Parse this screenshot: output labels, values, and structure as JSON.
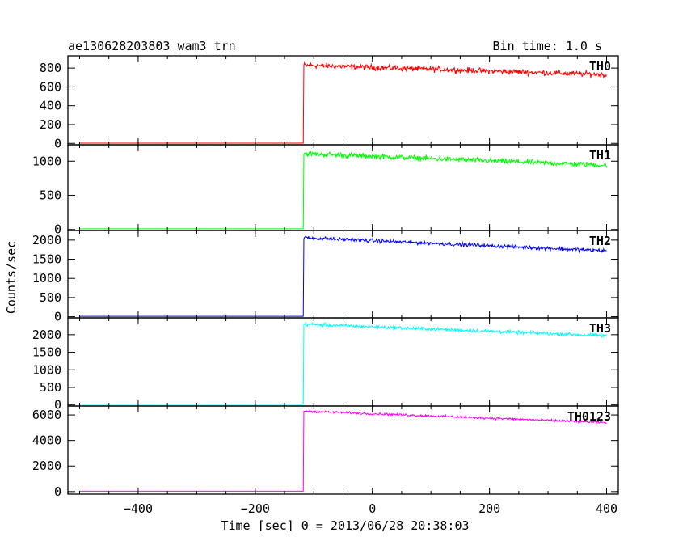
{
  "header": {
    "title": "ae130628203803_wam3_trn",
    "bin_time": "Bin time: 1.0 s"
  },
  "chart_data": {
    "type": "line",
    "xlabel": "Time [sec] 0 = 2013/06/28 20:38:03",
    "ylabel": "Counts/sec",
    "xlim": [
      -520,
      420
    ],
    "x_ticks": [
      -400,
      -200,
      0,
      200,
      400
    ],
    "x_tick_labels": [
      "−400",
      "−200",
      "0",
      "200",
      "400"
    ],
    "x_start": -500,
    "x_end": 400,
    "x_step": 1,
    "trigger_time": -117,
    "grid": false,
    "panels": [
      {
        "name": "TH0",
        "color": "#ff0000",
        "ylim": [
          -15,
          930
        ],
        "yticks": [
          0,
          200,
          400,
          600,
          800
        ],
        "ytick_labels": [
          "0",
          "200",
          "400",
          "600",
          "800"
        ],
        "pre_level": 2,
        "level_start": 830,
        "level_end": 730,
        "noise": 30
      },
      {
        "name": "TH1",
        "color": "#00ff00",
        "ylim": [
          -15,
          1240
        ],
        "yticks": [
          0,
          500,
          1000
        ],
        "ytick_labels": [
          "0",
          "500",
          "1000"
        ],
        "pre_level": 10,
        "level_start": 1110,
        "level_end": 940,
        "noise": 40
      },
      {
        "name": "TH2",
        "color": "#0000ff",
        "ylim": [
          -30,
          2250
        ],
        "yticks": [
          0,
          500,
          1000,
          1500,
          2000
        ],
        "ytick_labels": [
          "0",
          "500",
          "1000",
          "1500",
          "2000"
        ],
        "pre_level": 10,
        "level_start": 2060,
        "level_end": 1720,
        "noise": 50
      },
      {
        "name": "TH3",
        "color": "#00ffff",
        "ylim": [
          -30,
          2480
        ],
        "yticks": [
          0,
          500,
          1000,
          1500,
          2000
        ],
        "ytick_labels": [
          "0",
          "500",
          "1000",
          "1500",
          "2000"
        ],
        "pre_level": 20,
        "level_start": 2300,
        "level_end": 1970,
        "noise": 50
      },
      {
        "name": "TH0123",
        "color": "#ff00ff",
        "ylim": [
          -200,
          6700
        ],
        "yticks": [
          0,
          2000,
          4000,
          6000
        ],
        "ytick_labels": [
          "0",
          "2000",
          "4000",
          "6000"
        ],
        "pre_level": 30,
        "level_start": 6300,
        "level_end": 5400,
        "noise": 90
      }
    ]
  }
}
